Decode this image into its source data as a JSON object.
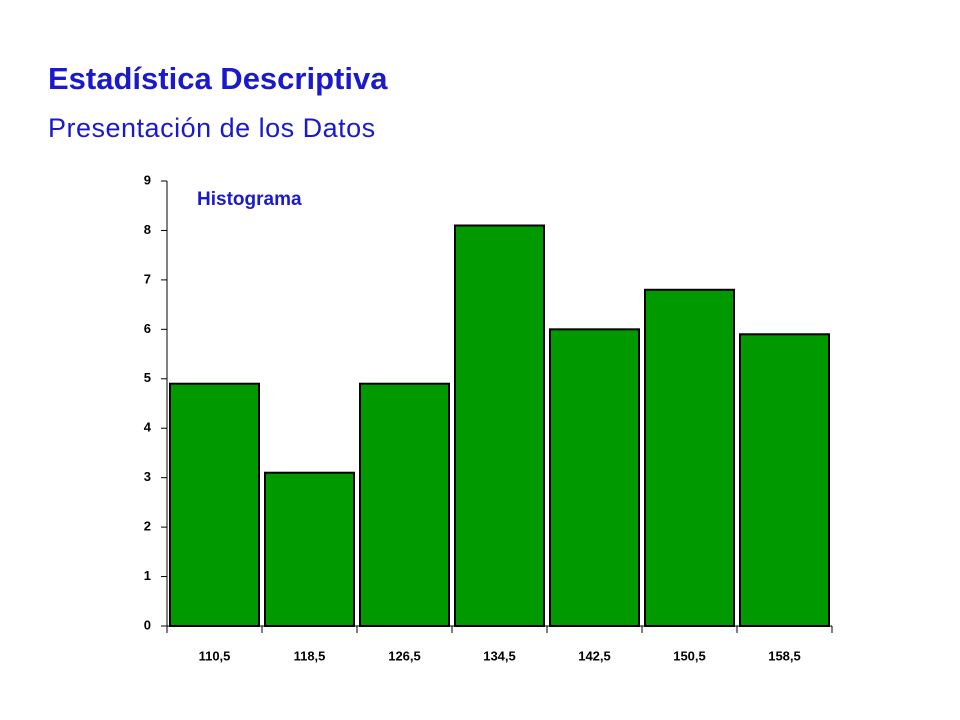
{
  "chart_data": {
    "type": "bar",
    "title": "Estadística Descriptiva",
    "subtitle": "Presentación de los Datos",
    "annotation": "Histograma",
    "categories": [
      "110,5",
      "118,5",
      "126,5",
      "134,5",
      "142,5",
      "150,5",
      "158,5"
    ],
    "values": [
      4.9,
      3.1,
      4.9,
      8.1,
      6.0,
      6.8,
      5.9
    ],
    "color": "#009900",
    "ylim": [
      0,
      9
    ],
    "yticks": [
      0,
      1,
      2,
      3,
      4,
      5,
      6,
      7,
      8,
      9
    ]
  }
}
